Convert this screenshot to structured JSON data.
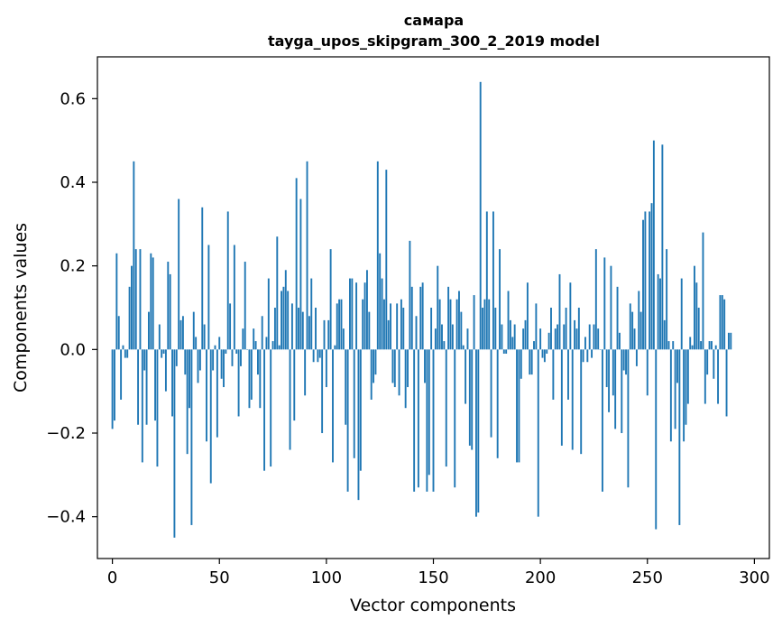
{
  "chart_data": {
    "type": "bar",
    "title_line1": "самара",
    "title_line2": "tayga_upos_skipgram_300_2_2019 model",
    "xlabel": "Vector components",
    "ylabel": "Components values",
    "xlim": [
      -7,
      307
    ],
    "ylim": [
      -0.5,
      0.7
    ],
    "xticks": [
      0,
      50,
      100,
      150,
      200,
      250,
      300
    ],
    "xtick_labels": [
      "0",
      "50",
      "100",
      "150",
      "200",
      "250",
      "300"
    ],
    "yticks": [
      -0.4,
      -0.2,
      0.0,
      0.2,
      0.4,
      0.6
    ],
    "ytick_labels": [
      "−0.4",
      "−0.2",
      "0.0",
      "0.2",
      "0.4",
      "0.6"
    ],
    "bar_color": "#1f77b4",
    "values": [
      -0.19,
      -0.17,
      0.23,
      0.08,
      -0.12,
      0.01,
      -0.02,
      -0.02,
      0.15,
      0.2,
      0.45,
      0.24,
      -0.18,
      0.24,
      -0.27,
      -0.05,
      -0.18,
      0.09,
      0.23,
      0.22,
      -0.17,
      -0.28,
      0.06,
      -0.02,
      -0.01,
      -0.1,
      0.21,
      0.18,
      -0.16,
      -0.45,
      -0.04,
      0.36,
      0.07,
      0.08,
      -0.06,
      -0.25,
      -0.14,
      -0.42,
      0.09,
      0.03,
      -0.08,
      -0.05,
      0.34,
      0.06,
      -0.22,
      0.25,
      -0.32,
      -0.05,
      0.01,
      -0.21,
      0.03,
      -0.07,
      -0.09,
      -0.01,
      0.33,
      0.11,
      -0.04,
      0.25,
      -0.01,
      -0.16,
      -0.04,
      0.05,
      0.21,
      0.0,
      -0.14,
      -0.12,
      0.05,
      0.02,
      -0.06,
      -0.14,
      0.08,
      -0.29,
      0.03,
      0.17,
      -0.28,
      0.02,
      0.1,
      0.27,
      0.01,
      0.14,
      0.15,
      0.19,
      0.14,
      -0.24,
      0.11,
      -0.17,
      0.41,
      0.1,
      0.36,
      0.09,
      -0.11,
      0.45,
      0.08,
      0.17,
      -0.03,
      0.1,
      -0.03,
      -0.02,
      -0.2,
      0.07,
      -0.09,
      0.07,
      0.24,
      -0.27,
      0.01,
      0.11,
      0.12,
      0.12,
      0.05,
      -0.18,
      -0.34,
      0.17,
      0.17,
      -0.26,
      0.16,
      -0.36,
      -0.29,
      0.12,
      0.16,
      0.19,
      0.09,
      -0.12,
      -0.08,
      -0.06,
      0.45,
      0.23,
      0.17,
      0.12,
      0.43,
      0.07,
      0.11,
      -0.08,
      -0.09,
      0.11,
      -0.11,
      0.12,
      0.1,
      -0.14,
      -0.09,
      0.26,
      0.15,
      -0.34,
      0.08,
      -0.33,
      0.15,
      0.16,
      -0.08,
      -0.34,
      -0.3,
      0.1,
      -0.34,
      0.05,
      0.2,
      0.12,
      0.06,
      0.02,
      -0.28,
      0.15,
      0.12,
      0.06,
      -0.33,
      0.12,
      0.14,
      0.09,
      0.01,
      -0.13,
      0.05,
      -0.23,
      -0.24,
      0.13,
      -0.4,
      -0.39,
      0.64,
      0.1,
      0.12,
      0.33,
      0.12,
      -0.21,
      0.33,
      0.1,
      -0.26,
      0.24,
      0.06,
      -0.01,
      -0.01,
      0.14,
      0.07,
      0.03,
      0.06,
      -0.27,
      -0.27,
      -0.07,
      0.05,
      0.07,
      0.16,
      -0.06,
      -0.06,
      0.02,
      0.11,
      -0.4,
      0.05,
      -0.02,
      -0.03,
      -0.01,
      0.04,
      0.1,
      -0.12,
      0.05,
      0.06,
      0.18,
      -0.23,
      0.06,
      0.1,
      -0.12,
      0.16,
      -0.24,
      0.07,
      0.05,
      0.1,
      -0.25,
      -0.03,
      0.03,
      -0.03,
      0.06,
      -0.02,
      0.06,
      0.24,
      0.05,
      0.0,
      -0.34,
      0.22,
      -0.09,
      -0.15,
      0.2,
      -0.11,
      -0.19,
      0.15,
      0.04,
      -0.2,
      -0.05,
      -0.06,
      -0.33,
      0.11,
      0.09,
      0.05,
      -0.04,
      0.14,
      0.09,
      0.31,
      0.33,
      -0.11,
      0.33,
      0.35,
      0.5,
      -0.43,
      0.18,
      0.17,
      0.49,
      0.07,
      0.24,
      0.02,
      -0.22,
      0.02,
      -0.19,
      -0.08,
      -0.42,
      0.17,
      -0.22,
      -0.18,
      -0.13,
      0.03,
      0.01,
      0.2,
      0.16,
      0.1,
      0.02,
      0.28,
      -0.13,
      -0.06,
      0.02,
      0.02,
      -0.07,
      0.01,
      -0.13,
      0.13,
      0.13,
      0.12,
      -0.16,
      0.04,
      0.04
    ]
  }
}
